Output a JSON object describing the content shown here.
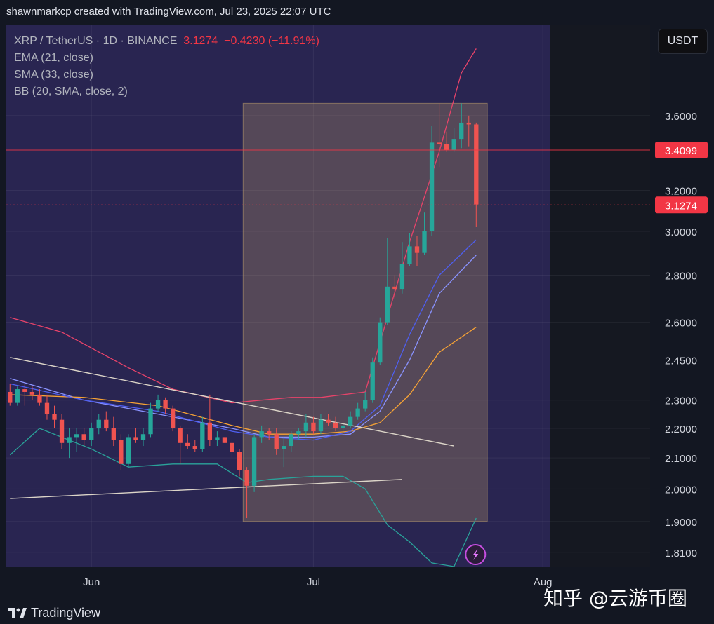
{
  "header": {
    "credit": "shawnmarkcp created with TradingView.com, Jul 23, 2025 22:07 UTC"
  },
  "legend": {
    "symbol": "XRP / TetherUS · 1D · BINANCE",
    "last": "3.1274",
    "change": "−0.4230 (−11.91%)",
    "indicators": [
      "EMA (21, close)",
      "SMA (33, close)",
      "BB (20, SMA, close, 2)"
    ]
  },
  "currency_button": "USDT",
  "footer": {
    "brand": "TradingView"
  },
  "watermark": "知乎 @云游币圈",
  "colors": {
    "background": "#131722",
    "highlight_zone": "#2b2757",
    "up": "#26a69a",
    "down": "#ef5350",
    "bb_upper": "#e8436a",
    "bb_lower": "#2aa39a",
    "ema": "#8a93ff",
    "sma": "#f7a335",
    "price_line": "#f23645"
  },
  "chart_data": {
    "type": "candlestick",
    "symbol": "XRP / TetherUS",
    "interval": "1D",
    "exchange": "BINANCE",
    "scale": "log",
    "y_ticks": [
      1.81,
      1.9,
      2.0,
      2.1,
      2.2,
      2.3,
      2.45,
      2.6,
      2.8,
      3.0,
      3.2,
      3.6
    ],
    "ylim": [
      1.77,
      4.15
    ],
    "x_ticks": [
      {
        "label": "Jun",
        "date": "2025-06-01"
      },
      {
        "label": "Jul",
        "date": "2025-07-01"
      },
      {
        "label": "Aug",
        "date": "2025-08-01"
      }
    ],
    "xlim": [
      "2025-05-21",
      "2025-08-15"
    ],
    "price_labels": [
      {
        "value": 3.4099,
        "text": "3.4099",
        "style": "solid"
      },
      {
        "value": 3.1274,
        "text": "3.1274",
        "style": "dotted"
      }
    ],
    "candles": [
      {
        "date": "2025-05-21",
        "o": 2.33,
        "h": 2.36,
        "l": 2.28,
        "c": 2.29
      },
      {
        "date": "2025-05-22",
        "o": 2.29,
        "h": 2.35,
        "l": 2.28,
        "c": 2.34
      },
      {
        "date": "2025-05-23",
        "o": 2.34,
        "h": 2.36,
        "l": 2.28,
        "c": 2.33
      },
      {
        "date": "2025-05-24",
        "o": 2.33,
        "h": 2.35,
        "l": 2.3,
        "c": 2.32
      },
      {
        "date": "2025-05-25",
        "o": 2.32,
        "h": 2.34,
        "l": 2.28,
        "c": 2.29
      },
      {
        "date": "2025-05-26",
        "o": 2.29,
        "h": 2.32,
        "l": 2.23,
        "c": 2.25
      },
      {
        "date": "2025-05-27",
        "o": 2.25,
        "h": 2.28,
        "l": 2.2,
        "c": 2.23
      },
      {
        "date": "2025-05-28",
        "o": 2.23,
        "h": 2.25,
        "l": 2.13,
        "c": 2.15
      },
      {
        "date": "2025-05-29",
        "o": 2.15,
        "h": 2.2,
        "l": 2.1,
        "c": 2.17
      },
      {
        "date": "2025-05-30",
        "o": 2.17,
        "h": 2.2,
        "l": 2.12,
        "c": 2.18
      },
      {
        "date": "2025-05-31",
        "o": 2.18,
        "h": 2.2,
        "l": 2.14,
        "c": 2.16
      },
      {
        "date": "2025-06-01",
        "o": 2.16,
        "h": 2.22,
        "l": 2.14,
        "c": 2.2
      },
      {
        "date": "2025-06-02",
        "o": 2.2,
        "h": 2.25,
        "l": 2.18,
        "c": 2.23
      },
      {
        "date": "2025-06-03",
        "o": 2.23,
        "h": 2.26,
        "l": 2.19,
        "c": 2.2
      },
      {
        "date": "2025-06-04",
        "o": 2.2,
        "h": 2.24,
        "l": 2.14,
        "c": 2.16
      },
      {
        "date": "2025-06-05",
        "o": 2.16,
        "h": 2.18,
        "l": 2.06,
        "c": 2.08
      },
      {
        "date": "2025-06-06",
        "o": 2.08,
        "h": 2.18,
        "l": 2.07,
        "c": 2.17
      },
      {
        "date": "2025-06-07",
        "o": 2.17,
        "h": 2.2,
        "l": 2.15,
        "c": 2.16
      },
      {
        "date": "2025-06-08",
        "o": 2.16,
        "h": 2.2,
        "l": 2.14,
        "c": 2.18
      },
      {
        "date": "2025-06-09",
        "o": 2.18,
        "h": 2.29,
        "l": 2.17,
        "c": 2.27
      },
      {
        "date": "2025-06-10",
        "o": 2.27,
        "h": 2.32,
        "l": 2.26,
        "c": 2.3
      },
      {
        "date": "2025-06-11",
        "o": 2.3,
        "h": 2.31,
        "l": 2.25,
        "c": 2.27
      },
      {
        "date": "2025-06-12",
        "o": 2.27,
        "h": 2.28,
        "l": 2.19,
        "c": 2.2
      },
      {
        "date": "2025-06-13",
        "o": 2.2,
        "h": 2.21,
        "l": 2.08,
        "c": 2.15
      },
      {
        "date": "2025-06-14",
        "o": 2.15,
        "h": 2.18,
        "l": 2.13,
        "c": 2.14
      },
      {
        "date": "2025-06-15",
        "o": 2.14,
        "h": 2.16,
        "l": 2.12,
        "c": 2.13
      },
      {
        "date": "2025-06-16",
        "o": 2.13,
        "h": 2.24,
        "l": 2.12,
        "c": 2.22
      },
      {
        "date": "2025-06-17",
        "o": 2.22,
        "h": 2.32,
        "l": 2.14,
        "c": 2.16
      },
      {
        "date": "2025-06-18",
        "o": 2.16,
        "h": 2.19,
        "l": 2.14,
        "c": 2.17
      },
      {
        "date": "2025-06-19",
        "o": 2.17,
        "h": 2.17,
        "l": 2.15,
        "c": 2.15
      },
      {
        "date": "2025-06-20",
        "o": 2.15,
        "h": 2.16,
        "l": 2.1,
        "c": 2.12
      },
      {
        "date": "2025-06-21",
        "o": 2.12,
        "h": 2.13,
        "l": 2.04,
        "c": 2.06
      },
      {
        "date": "2025-06-22",
        "o": 2.06,
        "h": 2.07,
        "l": 1.91,
        "c": 2.01
      },
      {
        "date": "2025-06-23",
        "o": 2.01,
        "h": 2.18,
        "l": 1.99,
        "c": 2.17
      },
      {
        "date": "2025-06-24",
        "o": 2.17,
        "h": 2.21,
        "l": 2.15,
        "c": 2.19
      },
      {
        "date": "2025-06-25",
        "o": 2.19,
        "h": 2.2,
        "l": 2.16,
        "c": 2.18
      },
      {
        "date": "2025-06-26",
        "o": 2.18,
        "h": 2.2,
        "l": 2.11,
        "c": 2.13
      },
      {
        "date": "2025-06-27",
        "o": 2.13,
        "h": 2.17,
        "l": 2.07,
        "c": 2.14
      },
      {
        "date": "2025-06-28",
        "o": 2.14,
        "h": 2.19,
        "l": 2.12,
        "c": 2.18
      },
      {
        "date": "2025-06-29",
        "o": 2.18,
        "h": 2.2,
        "l": 2.16,
        "c": 2.19
      },
      {
        "date": "2025-06-30",
        "o": 2.19,
        "h": 2.25,
        "l": 2.17,
        "c": 2.22
      },
      {
        "date": "2025-07-01",
        "o": 2.22,
        "h": 2.24,
        "l": 2.18,
        "c": 2.19
      },
      {
        "date": "2025-07-02",
        "o": 2.19,
        "h": 2.25,
        "l": 2.18,
        "c": 2.23
      },
      {
        "date": "2025-07-03",
        "o": 2.23,
        "h": 2.25,
        "l": 2.21,
        "c": 2.22
      },
      {
        "date": "2025-07-04",
        "o": 2.22,
        "h": 2.24,
        "l": 2.19,
        "c": 2.2
      },
      {
        "date": "2025-07-05",
        "o": 2.2,
        "h": 2.22,
        "l": 2.19,
        "c": 2.21
      },
      {
        "date": "2025-07-06",
        "o": 2.21,
        "h": 2.26,
        "l": 2.2,
        "c": 2.24
      },
      {
        "date": "2025-07-07",
        "o": 2.24,
        "h": 2.29,
        "l": 2.23,
        "c": 2.27
      },
      {
        "date": "2025-07-08",
        "o": 2.27,
        "h": 2.33,
        "l": 2.26,
        "c": 2.3
      },
      {
        "date": "2025-07-09",
        "o": 2.3,
        "h": 2.46,
        "l": 2.29,
        "c": 2.44
      },
      {
        "date": "2025-07-10",
        "o": 2.44,
        "h": 2.62,
        "l": 2.43,
        "c": 2.6
      },
      {
        "date": "2025-07-11",
        "o": 2.6,
        "h": 2.97,
        "l": 2.59,
        "c": 2.75
      },
      {
        "date": "2025-07-12",
        "o": 2.75,
        "h": 2.8,
        "l": 2.7,
        "c": 2.74
      },
      {
        "date": "2025-07-13",
        "o": 2.74,
        "h": 2.95,
        "l": 2.72,
        "c": 2.85
      },
      {
        "date": "2025-07-14",
        "o": 2.85,
        "h": 2.99,
        "l": 2.84,
        "c": 2.93
      },
      {
        "date": "2025-07-15",
        "o": 2.93,
        "h": 2.98,
        "l": 2.84,
        "c": 2.9
      },
      {
        "date": "2025-07-16",
        "o": 2.9,
        "h": 3.09,
        "l": 2.89,
        "c": 3.0
      },
      {
        "date": "2025-07-17",
        "o": 3.0,
        "h": 3.54,
        "l": 2.98,
        "c": 3.45
      },
      {
        "date": "2025-07-18",
        "o": 3.45,
        "h": 3.67,
        "l": 3.32,
        "c": 3.44
      },
      {
        "date": "2025-07-19",
        "o": 3.44,
        "h": 3.51,
        "l": 3.4,
        "c": 3.41
      },
      {
        "date": "2025-07-20",
        "o": 3.41,
        "h": 3.53,
        "l": 3.4,
        "c": 3.47
      },
      {
        "date": "2025-07-21",
        "o": 3.47,
        "h": 3.67,
        "l": 3.42,
        "c": 3.56
      },
      {
        "date": "2025-07-22",
        "o": 3.56,
        "h": 3.6,
        "l": 3.43,
        "c": 3.55
      },
      {
        "date": "2025-07-23",
        "o": 3.55,
        "h": 3.56,
        "l": 3.02,
        "c": 3.13
      }
    ],
    "series": [
      {
        "name": "EMA (21, close)",
        "color": "#8a93ff",
        "points": [
          [
            "2025-05-21",
            2.38
          ],
          [
            "2025-05-31",
            2.3
          ],
          [
            "2025-06-10",
            2.25
          ],
          [
            "2025-06-20",
            2.2
          ],
          [
            "2025-06-25",
            2.17
          ],
          [
            "2025-07-01",
            2.17
          ],
          [
            "2025-07-06",
            2.18
          ],
          [
            "2025-07-10",
            2.26
          ],
          [
            "2025-07-14",
            2.45
          ],
          [
            "2025-07-18",
            2.72
          ],
          [
            "2025-07-23",
            2.89
          ]
        ]
      },
      {
        "name": "SMA (33, close)",
        "color": "#f7a335",
        "points": [
          [
            "2025-05-21",
            2.32
          ],
          [
            "2025-05-31",
            2.31
          ],
          [
            "2025-06-10",
            2.28
          ],
          [
            "2025-06-20",
            2.21
          ],
          [
            "2025-06-25",
            2.18
          ],
          [
            "2025-07-01",
            2.18
          ],
          [
            "2025-07-06",
            2.19
          ],
          [
            "2025-07-10",
            2.22
          ],
          [
            "2025-07-14",
            2.32
          ],
          [
            "2025-07-18",
            2.48
          ],
          [
            "2025-07-23",
            2.58
          ]
        ]
      },
      {
        "name": "BB basis",
        "color": "#4f5ff0",
        "points": [
          [
            "2025-05-21",
            2.36
          ],
          [
            "2025-05-31",
            2.3
          ],
          [
            "2025-06-10",
            2.26
          ],
          [
            "2025-06-20",
            2.19
          ],
          [
            "2025-06-25",
            2.17
          ],
          [
            "2025-07-01",
            2.16
          ],
          [
            "2025-07-06",
            2.19
          ],
          [
            "2025-07-10",
            2.28
          ],
          [
            "2025-07-14",
            2.55
          ],
          [
            "2025-07-18",
            2.8
          ],
          [
            "2025-07-23",
            2.96
          ]
        ]
      },
      {
        "name": "BB upper",
        "color": "#e8436a",
        "points": [
          [
            "2025-05-21",
            2.62
          ],
          [
            "2025-05-28",
            2.56
          ],
          [
            "2025-06-06",
            2.42
          ],
          [
            "2025-06-12",
            2.34
          ],
          [
            "2025-06-20",
            2.29
          ],
          [
            "2025-06-28",
            2.31
          ],
          [
            "2025-07-02",
            2.31
          ],
          [
            "2025-07-08",
            2.33
          ],
          [
            "2025-07-11",
            2.62
          ],
          [
            "2025-07-14",
            2.95
          ],
          [
            "2025-07-18",
            3.4
          ],
          [
            "2025-07-21",
            3.85
          ],
          [
            "2025-07-23",
            4.0
          ]
        ]
      },
      {
        "name": "BB lower",
        "color": "#2aa39a",
        "points": [
          [
            "2025-05-21",
            2.11
          ],
          [
            "2025-05-25",
            2.2
          ],
          [
            "2025-06-01",
            2.13
          ],
          [
            "2025-06-06",
            2.07
          ],
          [
            "2025-06-12",
            2.08
          ],
          [
            "2025-06-18",
            2.08
          ],
          [
            "2025-06-22",
            2.02
          ],
          [
            "2025-06-25",
            2.03
          ],
          [
            "2025-07-01",
            2.04
          ],
          [
            "2025-07-05",
            2.04
          ],
          [
            "2025-07-08",
            2.0
          ],
          [
            "2025-07-11",
            1.89
          ],
          [
            "2025-07-14",
            1.84
          ],
          [
            "2025-07-17",
            1.78
          ],
          [
            "2025-07-20",
            1.77
          ],
          [
            "2025-07-23",
            1.91
          ]
        ]
      }
    ],
    "trendlines": [
      {
        "name": "descending resistance",
        "from": [
          "2025-05-21",
          2.46
        ],
        "to": [
          "2025-07-20",
          2.14
        ]
      },
      {
        "name": "ascending support",
        "from": [
          "2025-05-21",
          1.97
        ],
        "to": [
          "2025-07-13",
          2.03
        ]
      }
    ],
    "highlight": {
      "from": "2025-06-22",
      "to": "2025-07-24",
      "low": 1.9,
      "high": 3.67
    }
  }
}
